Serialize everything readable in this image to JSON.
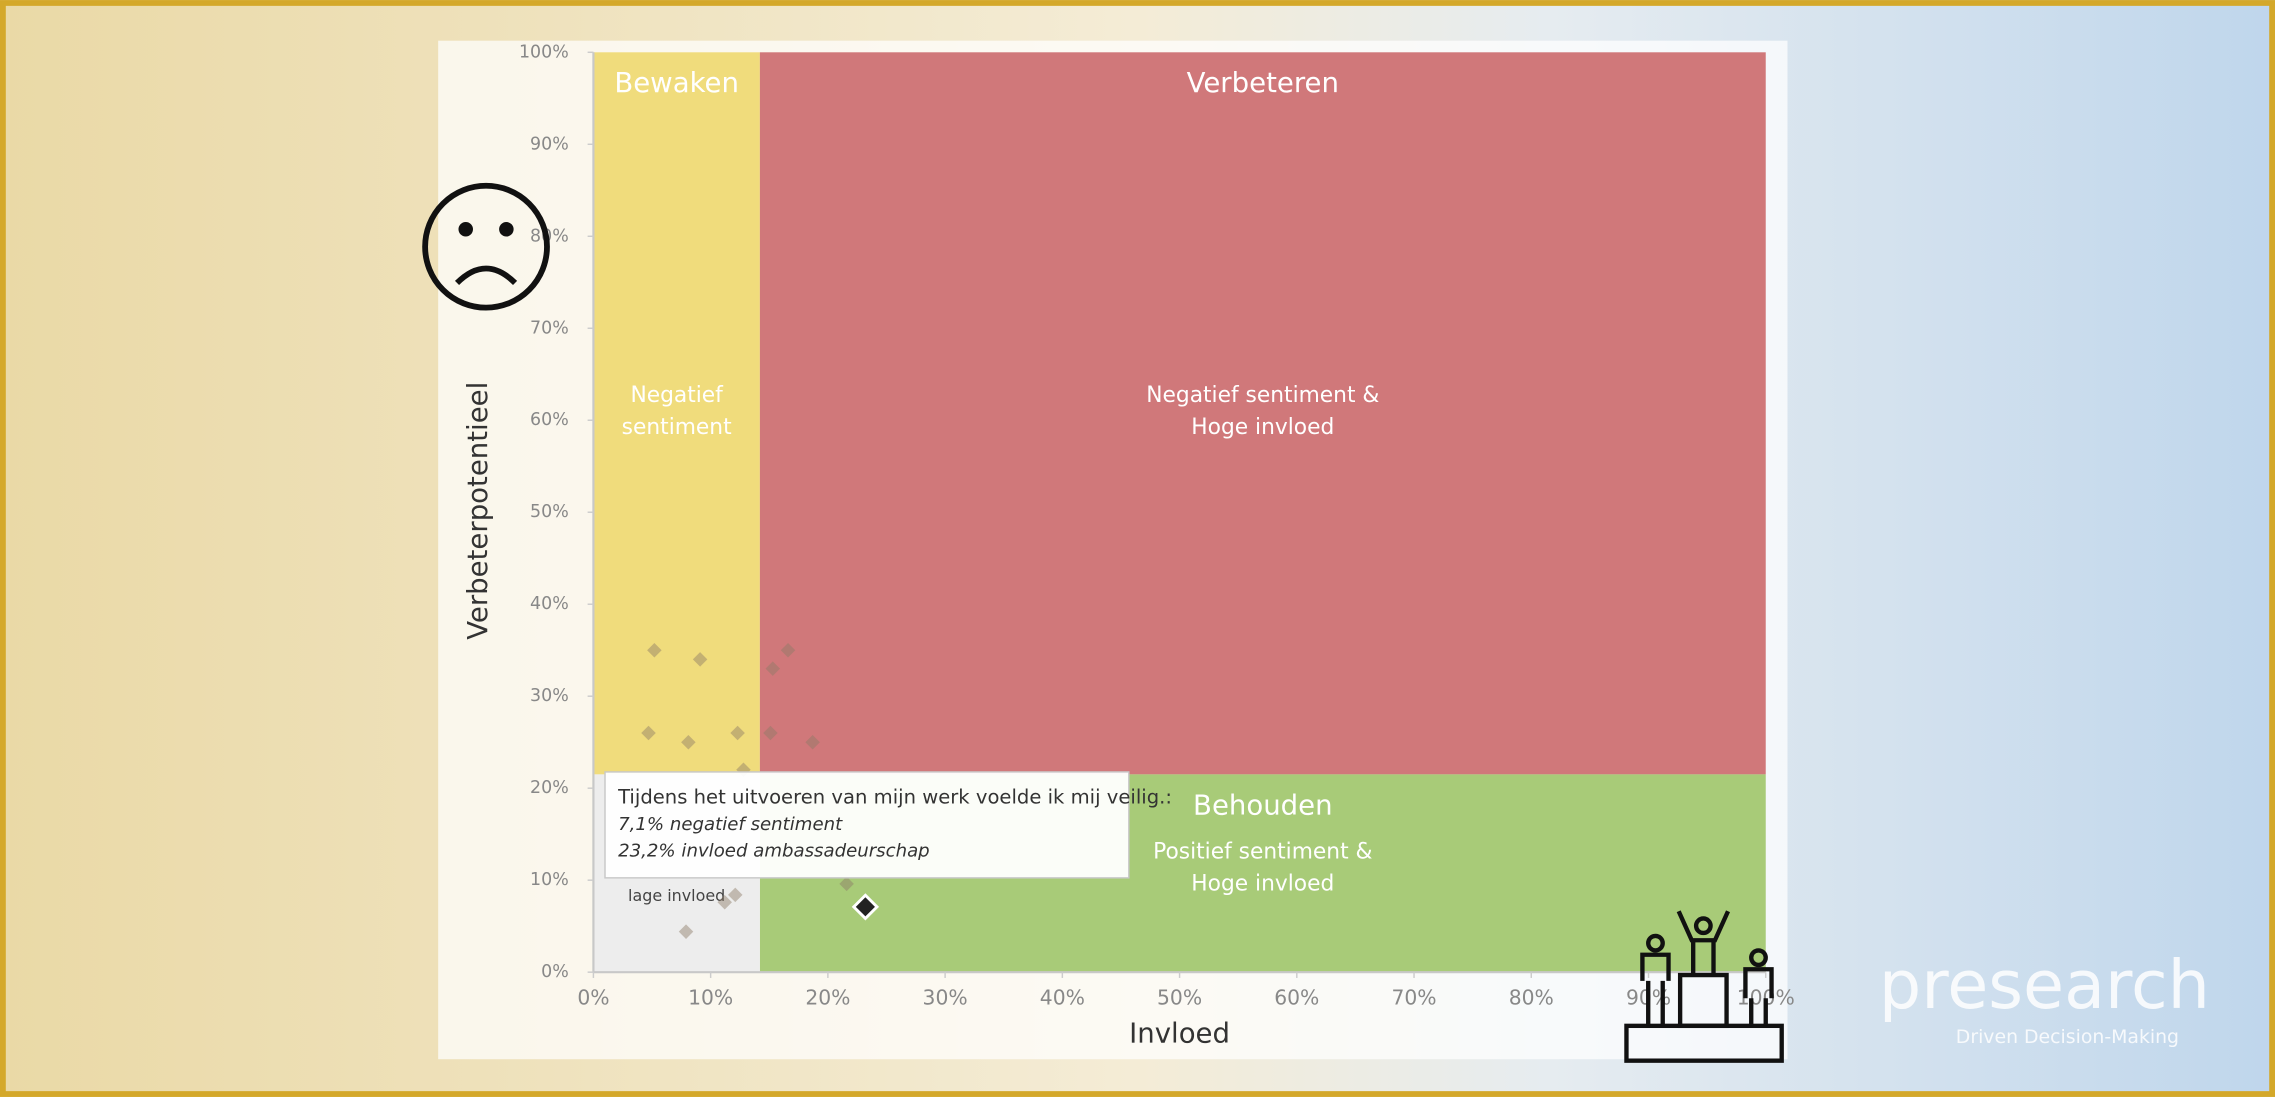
{
  "chart_data": {
    "type": "scatter",
    "x_label": "Invloed",
    "y_label": "Verbeterpotentieel",
    "xlim": [
      0,
      100
    ],
    "ylim": [
      0,
      100
    ],
    "xticks": [
      {
        "value": 0,
        "label": "0%"
      },
      {
        "value": 10,
        "label": "10%"
      },
      {
        "value": 20,
        "label": "20%"
      },
      {
        "value": 30,
        "label": "30%"
      },
      {
        "value": 40,
        "label": "40%"
      },
      {
        "value": 50,
        "label": "50%"
      },
      {
        "value": 60,
        "label": "60%"
      },
      {
        "value": 70,
        "label": "70%"
      },
      {
        "value": 80,
        "label": "80%"
      },
      {
        "value": 90,
        "label": "90%"
      },
      {
        "value": 100,
        "label": "100%"
      }
    ],
    "yticks": [
      {
        "value": 0,
        "label": "0%"
      },
      {
        "value": 10,
        "label": "10%"
      },
      {
        "value": 20,
        "label": "20%"
      },
      {
        "value": 30,
        "label": "30%"
      },
      {
        "value": 40,
        "label": "40%"
      },
      {
        "value": 50,
        "label": "50%"
      },
      {
        "value": 60,
        "label": "60%"
      },
      {
        "value": 70,
        "label": "70%"
      },
      {
        "value": 80,
        "label": "80%"
      },
      {
        "value": 90,
        "label": "90%"
      },
      {
        "value": 100,
        "label": "100%"
      }
    ],
    "quadrants": [
      {
        "title": "Bewaken",
        "lines": [
          "Negatief",
          "sentiment"
        ],
        "xlim": [
          0,
          14.2
        ],
        "ylim": [
          21.5,
          100
        ],
        "color": "#f0dc7c"
      },
      {
        "title": "Verbeteren",
        "lines": [
          "Negatief sentiment &",
          "Hoge invloed"
        ],
        "xlim": [
          14.2,
          100
        ],
        "ylim": [
          21.5,
          100
        ],
        "color": "#d0787a"
      },
      {
        "title": "Behouden",
        "lines": [
          "Positief sentiment &",
          "Hoge invloed"
        ],
        "xlim": [
          14.2,
          100
        ],
        "ylim": [
          0,
          21.5
        ],
        "color": "#a8cb78"
      },
      {
        "lines": [
          "lage invloed"
        ],
        "xlim": [
          0,
          14.2
        ],
        "ylim": [
          0,
          21.5
        ],
        "color": "#ededed"
      }
    ],
    "x": [
      5.2,
      9.1,
      15.3,
      16.6,
      4.7,
      8.1,
      12.3,
      15.1,
      18.7,
      12.8,
      11.2,
      12.1,
      7.9,
      21.6,
      23.2
    ],
    "values": [
      35,
      34,
      33,
      35,
      26,
      25,
      26,
      26,
      25,
      22,
      7.6,
      8.4,
      4.4,
      9.6,
      7.1
    ],
    "color": "#8c7a66",
    "highlight": 14,
    "tooltip": [
      "Tijdens het uitvoeren van mijn werk voelde ik mij veilig.:",
      "7,1% negatief sentiment",
      "23,2% invloed ambassadeurschap"
    ]
  },
  "logo": {
    "name": "presearch",
    "tagline": "Driven Decision-Making"
  }
}
